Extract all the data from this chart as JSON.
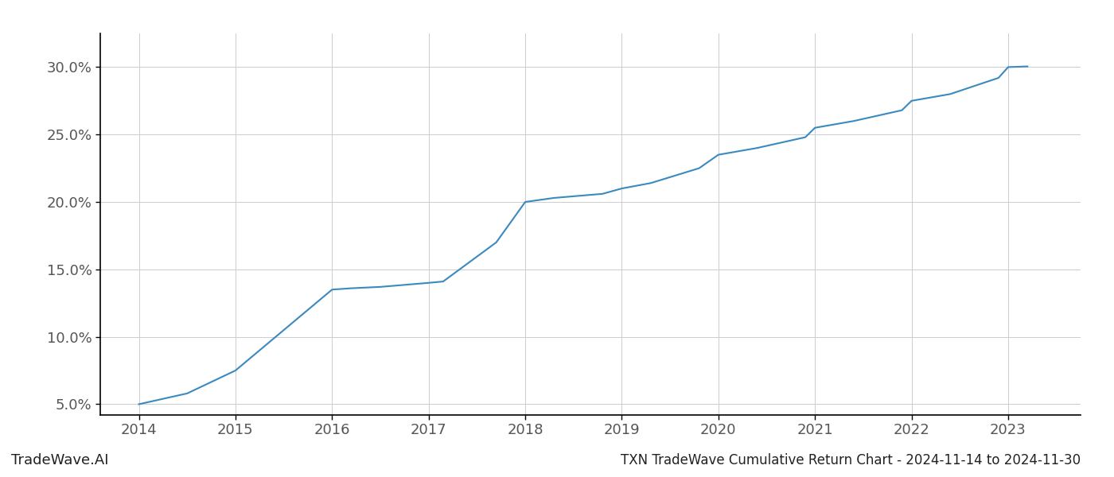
{
  "x_values": [
    2014,
    2014.5,
    2015,
    2015.5,
    2016,
    2016.2,
    2016.5,
    2017,
    2017.15,
    2017.7,
    2018,
    2018.3,
    2018.8,
    2019,
    2019.3,
    2019.8,
    2020,
    2020.4,
    2020.9,
    2021,
    2021.4,
    2021.9,
    2022,
    2022.4,
    2022.9,
    2023,
    2023.2
  ],
  "y_values": [
    5.0,
    5.8,
    7.5,
    10.5,
    13.5,
    13.6,
    13.7,
    14.0,
    14.1,
    17.0,
    20.0,
    20.3,
    20.6,
    21.0,
    21.4,
    22.5,
    23.5,
    24.0,
    24.8,
    25.5,
    26.0,
    26.8,
    27.5,
    28.0,
    29.2,
    30.0,
    30.05
  ],
  "line_color": "#3a8abf",
  "line_width": 1.5,
  "background_color": "#ffffff",
  "grid_color": "#cccccc",
  "title": "TXN TradeWave Cumulative Return Chart - 2024-11-14 to 2024-11-30",
  "watermark": "TradeWave.AI",
  "xlim": [
    2013.6,
    2023.75
  ],
  "ylim": [
    4.2,
    32.5
  ],
  "yticks": [
    5.0,
    10.0,
    15.0,
    20.0,
    25.0,
    30.0
  ],
  "xticks": [
    2014,
    2015,
    2016,
    2017,
    2018,
    2019,
    2020,
    2021,
    2022,
    2023
  ],
  "title_fontsize": 12,
  "tick_fontsize": 13,
  "watermark_fontsize": 13
}
